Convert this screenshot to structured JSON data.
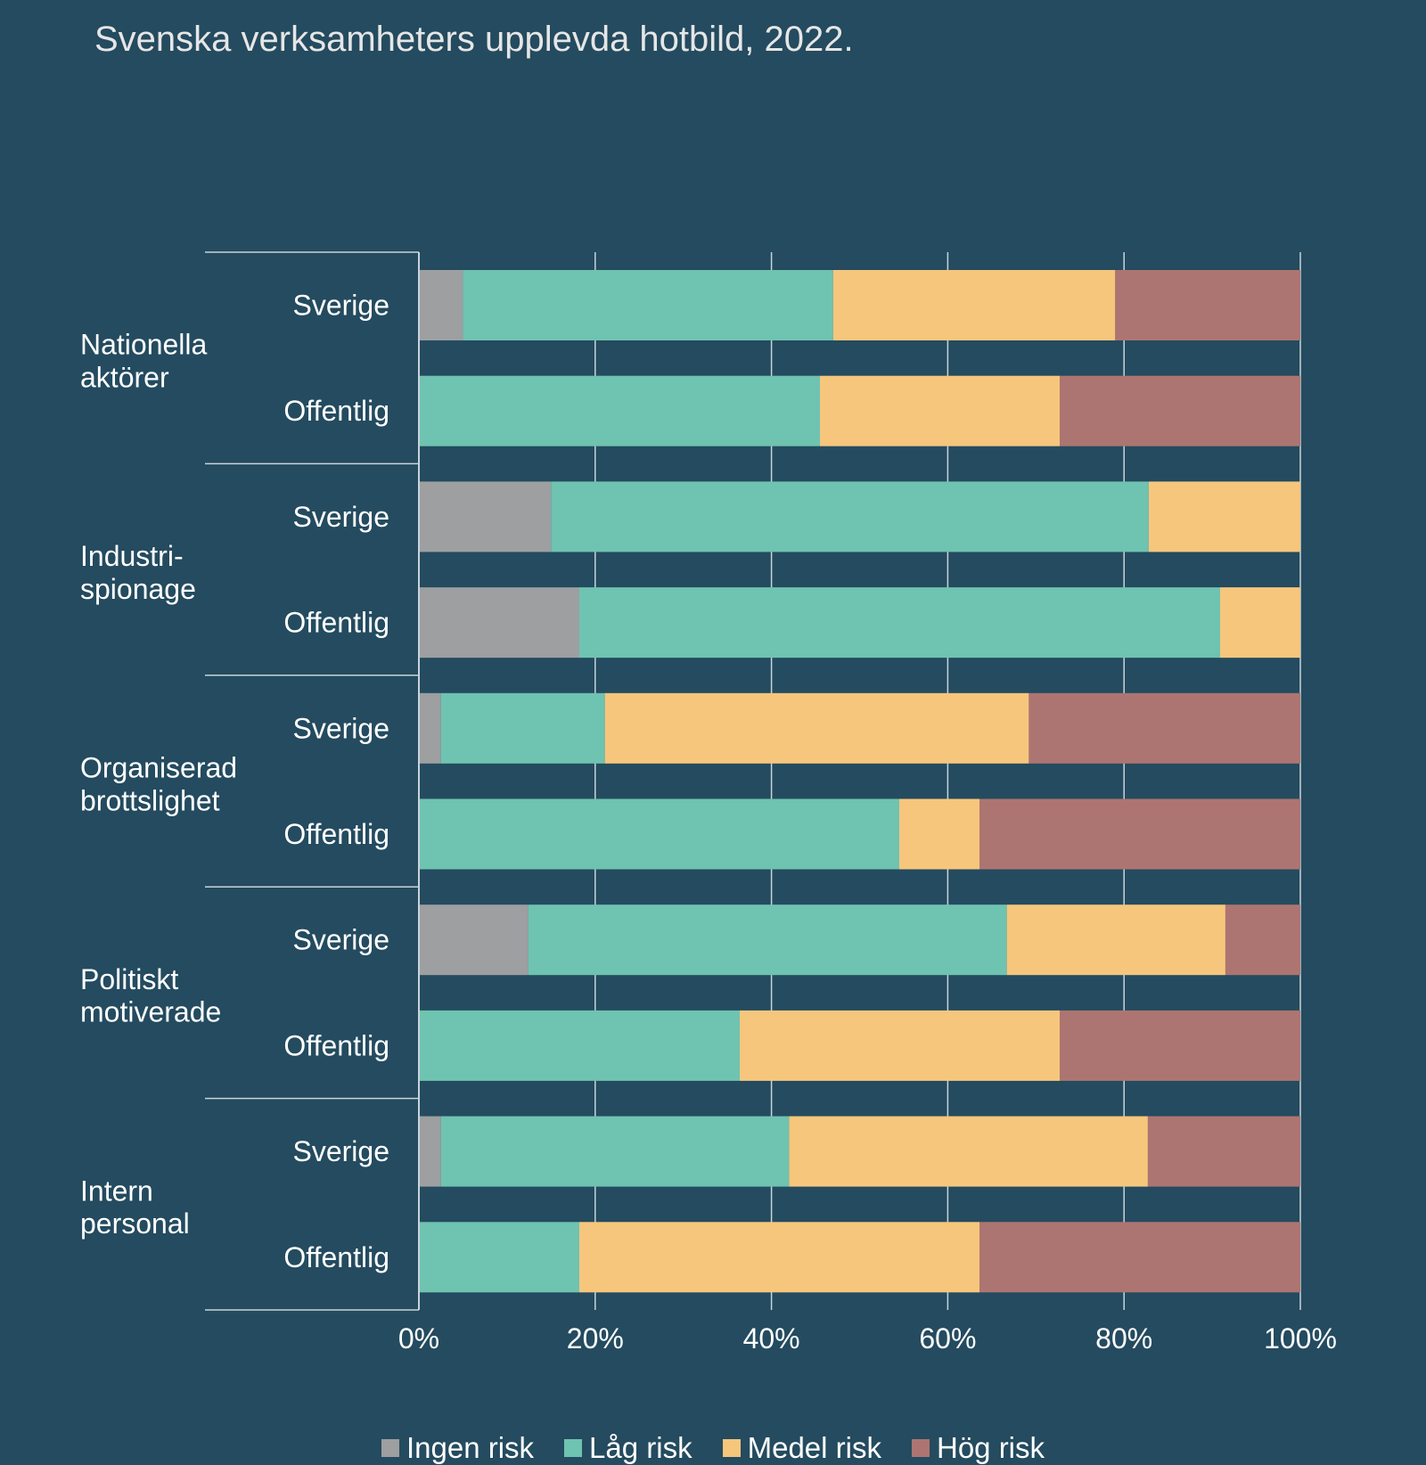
{
  "chart_data": {
    "type": "bar",
    "orientation": "horizontal",
    "stacked": "percent",
    "title": "Svenska verksamheters upplevda hotbild, 2022.",
    "xlabel": "",
    "ylabel": "",
    "xlim": [
      0,
      100
    ],
    "x_ticks": [
      "0%",
      "20%",
      "40%",
      "60%",
      "80%",
      "100%"
    ],
    "grid": true,
    "legend_position": "bottom",
    "groups": [
      {
        "label": [
          "Nationella",
          "aktörer"
        ],
        "bars": [
          {
            "label": "Sverige",
            "values": [
              5,
              42,
              32,
              21
            ]
          },
          {
            "label": "Offentlig",
            "values": [
              0,
              45.5,
              27.2,
              27.3
            ]
          }
        ]
      },
      {
        "label": [
          "Industri-",
          "spionage"
        ],
        "bars": [
          {
            "label": "Sverige",
            "values": [
              15,
              67.8,
              17.2,
              0
            ]
          },
          {
            "label": "Offentlig",
            "values": [
              18.2,
              72.7,
              9.1,
              0
            ]
          }
        ]
      },
      {
        "label": [
          "Organiserad",
          "brottslighet"
        ],
        "bars": [
          {
            "label": "Sverige",
            "values": [
              2.5,
              18.6,
              48.1,
              30.8
            ]
          },
          {
            "label": "Offentlig",
            "values": [
              0,
              54.5,
              9.1,
              36.4
            ]
          }
        ]
      },
      {
        "label": [
          "Politiskt",
          "motiverade"
        ],
        "bars": [
          {
            "label": "Sverige",
            "values": [
              12.4,
              54.3,
              24.8,
              8.5
            ]
          },
          {
            "label": "Offentlig",
            "values": [
              0,
              36.4,
              36.3,
              27.3
            ]
          }
        ]
      },
      {
        "label": [
          "Intern",
          "personal"
        ],
        "bars": [
          {
            "label": "Sverige",
            "values": [
              2.5,
              39.5,
              40.7,
              17.3
            ]
          },
          {
            "label": "Offentlig",
            "values": [
              0,
              18.2,
              45.4,
              36.4
            ]
          }
        ]
      }
    ],
    "series": [
      {
        "name": "Ingen risk",
        "color": "#9d9fa1"
      },
      {
        "name": "Låg risk",
        "color": "#6fc3b1"
      },
      {
        "name": "Medel risk",
        "color": "#f6c67d"
      },
      {
        "name": "Hög risk",
        "color": "#ad7571"
      }
    ]
  },
  "colors": {
    "background": "#244b5f",
    "grid": "#c9d3d9",
    "text": "#ffffff",
    "title": "#e6e6e6"
  }
}
